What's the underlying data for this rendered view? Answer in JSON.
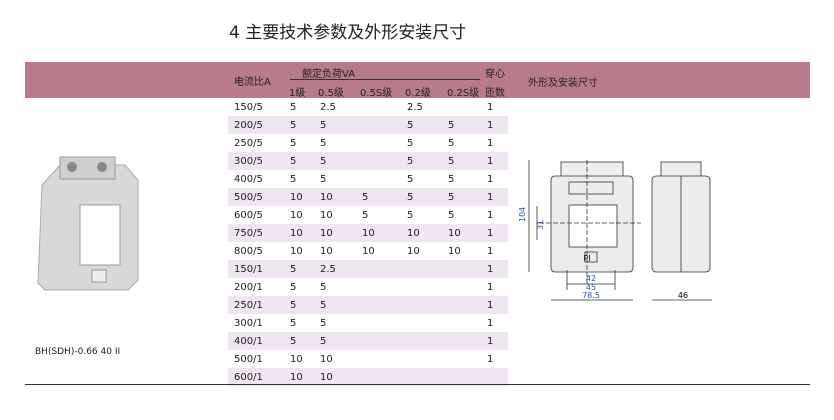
{
  "title": "4 主要技术参数及外形安装尺寸",
  "header": {
    "ratio": "电流比A",
    "burden": "额定负荷VA",
    "c1": "1级",
    "c05": "0.5级",
    "c05s": "0.5S级",
    "c02": "0.2级",
    "c02s": "0.2S级",
    "turns1": "穿心",
    "turns2": "匝数",
    "dims": "外形及安装尺寸"
  },
  "rows": [
    [
      "150/5",
      "5",
      "2.5",
      "",
      "2.5",
      "",
      "1"
    ],
    [
      "200/5",
      "5",
      "5",
      "",
      "5",
      "5",
      "1"
    ],
    [
      "250/5",
      "5",
      "5",
      "",
      "5",
      "5",
      "1"
    ],
    [
      "300/5",
      "5",
      "5",
      "",
      "5",
      "5",
      "1"
    ],
    [
      "400/5",
      "5",
      "5",
      "",
      "5",
      "5",
      "1"
    ],
    [
      "500/5",
      "10",
      "10",
      "5",
      "5",
      "5",
      "1"
    ],
    [
      "600/5",
      "10",
      "10",
      "5",
      "5",
      "5",
      "1"
    ],
    [
      "750/5",
      "10",
      "10",
      "10",
      "10",
      "10",
      "1"
    ],
    [
      "800/5",
      "10",
      "10",
      "10",
      "10",
      "10",
      "1"
    ],
    [
      "150/1",
      "5",
      "2.5",
      "",
      "",
      "",
      "1"
    ],
    [
      "200/1",
      "5",
      "5",
      "",
      "",
      "",
      "1"
    ],
    [
      "250/1",
      "5",
      "5",
      "",
      "",
      "",
      "1"
    ],
    [
      "300/1",
      "5",
      "5",
      "",
      "",
      "",
      "1"
    ],
    [
      "400/1",
      "5",
      "5",
      "",
      "",
      "",
      "1"
    ],
    [
      "500/1",
      "10",
      "10",
      "",
      "",
      "",
      "1"
    ],
    [
      "600/1",
      "10",
      "10",
      "",
      "",
      "",
      ""
    ]
  ],
  "caption": "BH(SDH)-0.66 40 II",
  "drawing": {
    "h104": "104",
    "h31": "31",
    "w42": "42",
    "w45": "45",
    "w785": "78.5",
    "w46": "46",
    "label": "PI"
  },
  "colors": {
    "band": "#b77b8c",
    "row_alt": "#efe6f1",
    "dim": "#2a55a0"
  }
}
